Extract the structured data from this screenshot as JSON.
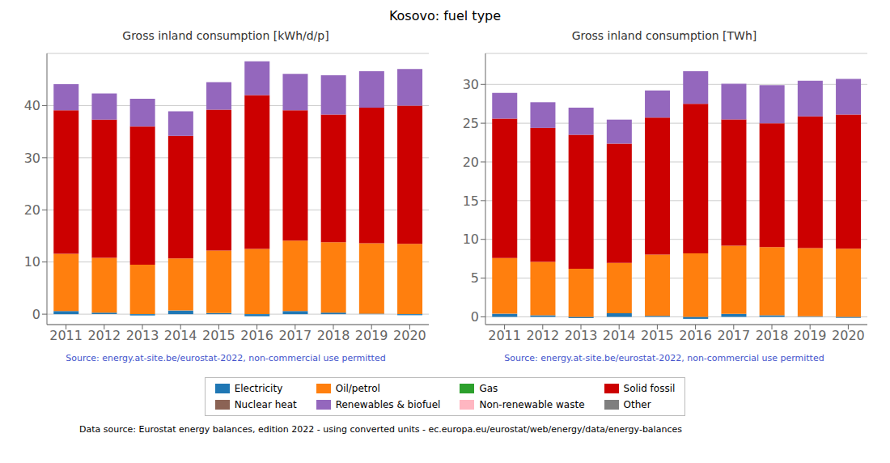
{
  "title": "Kosovo: fuel type",
  "annotations": [
    "Data source: Eurostat energy balances, edition 2022 - using converted units - ec.europa.eu/eurostat/web/energy/data/energy-balances"
  ],
  "chart_data": [
    {
      "type": "bar",
      "stacked": true,
      "title": "Gross inland consumption [kWh/d/p]",
      "categories": [
        2011,
        2012,
        2013,
        2014,
        2015,
        2016,
        2017,
        2018,
        2019,
        2020
      ],
      "series": [
        {
          "name": "Electricity",
          "color": "#1f77b4",
          "values": [
            0.6,
            0.3,
            -0.25,
            0.7,
            0.2,
            -0.4,
            0.6,
            0.3,
            0.1,
            -0.2
          ]
        },
        {
          "name": "Oil/petrol",
          "color": "#ff7f0e",
          "values": [
            11.0,
            10.5,
            9.5,
            10.0,
            12.0,
            12.5,
            13.5,
            13.5,
            13.5,
            13.5
          ]
        },
        {
          "name": "Gas",
          "color": "#2ca02c",
          "values": [
            0.0,
            0.0,
            0.0,
            0.0,
            0.0,
            0.0,
            0.0,
            0.0,
            0.0,
            0.0
          ]
        },
        {
          "name": "Solid fossil",
          "color": "#cc0000",
          "values": [
            27.5,
            26.5,
            26.5,
            23.5,
            27.0,
            29.5,
            25.0,
            24.5,
            26.0,
            26.5
          ]
        },
        {
          "name": "Nuclear heat",
          "color": "#8b6355",
          "values": [
            0.0,
            0.0,
            0.0,
            0.0,
            0.0,
            0.0,
            0.0,
            0.0,
            0.0,
            0.0
          ]
        },
        {
          "name": "Renewables & biofuel",
          "color": "#9467bd",
          "values": [
            5.0,
            5.0,
            5.3,
            4.7,
            5.3,
            6.5,
            7.0,
            7.5,
            7.0,
            7.0
          ]
        },
        {
          "name": "Non-renewable waste",
          "color": "#ffb6c1",
          "values": [
            0.0,
            0.0,
            0.0,
            0.0,
            0.0,
            0.0,
            0.0,
            0.0,
            0.0,
            0.0
          ]
        },
        {
          "name": "Other",
          "color": "#7f7f7f",
          "values": [
            0.0,
            0.0,
            0.0,
            0.0,
            0.0,
            0.0,
            0.0,
            0.0,
            0.0,
            0.0
          ]
        }
      ],
      "ylim": [
        -2,
        50
      ],
      "yticks": [
        0,
        10,
        20,
        30,
        40
      ],
      "grid": true,
      "annotations": [
        {
          "text": "Source: energy.at-site.be/eurostat-2022, non-commercial use permitted",
          "color": "#4455cc"
        }
      ]
    },
    {
      "type": "bar",
      "stacked": true,
      "title": "Gross inland consumption [TWh]",
      "categories": [
        2011,
        2012,
        2013,
        2014,
        2015,
        2016,
        2017,
        2018,
        2019,
        2020
      ],
      "series": [
        {
          "name": "Electricity",
          "color": "#1f77b4",
          "values": [
            0.4,
            0.2,
            -0.16,
            0.46,
            0.13,
            -0.26,
            0.39,
            0.2,
            0.07,
            -0.13
          ]
        },
        {
          "name": "Oil/petrol",
          "color": "#ff7f0e",
          "values": [
            7.2,
            6.9,
            6.2,
            6.5,
            7.9,
            8.2,
            8.8,
            8.8,
            8.8,
            8.8
          ]
        },
        {
          "name": "Gas",
          "color": "#2ca02c",
          "values": [
            0.0,
            0.0,
            0.0,
            0.0,
            0.0,
            0.0,
            0.0,
            0.0,
            0.0,
            0.0
          ]
        },
        {
          "name": "Solid fossil",
          "color": "#cc0000",
          "values": [
            18.0,
            17.3,
            17.3,
            15.4,
            17.7,
            19.3,
            16.3,
            16.0,
            17.0,
            17.3
          ]
        },
        {
          "name": "Nuclear heat",
          "color": "#8b6355",
          "values": [
            0.0,
            0.0,
            0.0,
            0.0,
            0.0,
            0.0,
            0.0,
            0.0,
            0.0,
            0.0
          ]
        },
        {
          "name": "Renewables & biofuel",
          "color": "#9467bd",
          "values": [
            3.3,
            3.3,
            3.5,
            3.1,
            3.5,
            4.2,
            4.6,
            4.9,
            4.6,
            4.6
          ]
        },
        {
          "name": "Non-renewable waste",
          "color": "#ffb6c1",
          "values": [
            0.0,
            0.0,
            0.0,
            0.0,
            0.0,
            0.0,
            0.0,
            0.0,
            0.0,
            0.0
          ]
        },
        {
          "name": "Other",
          "color": "#7f7f7f",
          "values": [
            0.0,
            0.0,
            0.0,
            0.0,
            0.0,
            0.0,
            0.0,
            0.0,
            0.0,
            0.0
          ]
        }
      ],
      "ylim": [
        -1,
        34
      ],
      "yticks": [
        0,
        5,
        10,
        15,
        20,
        25,
        30
      ],
      "grid": true,
      "annotations": [
        {
          "text": "Source: energy.at-site.be/eurostat-2022, non-commercial use permitted",
          "color": "#4455cc"
        }
      ]
    }
  ]
}
